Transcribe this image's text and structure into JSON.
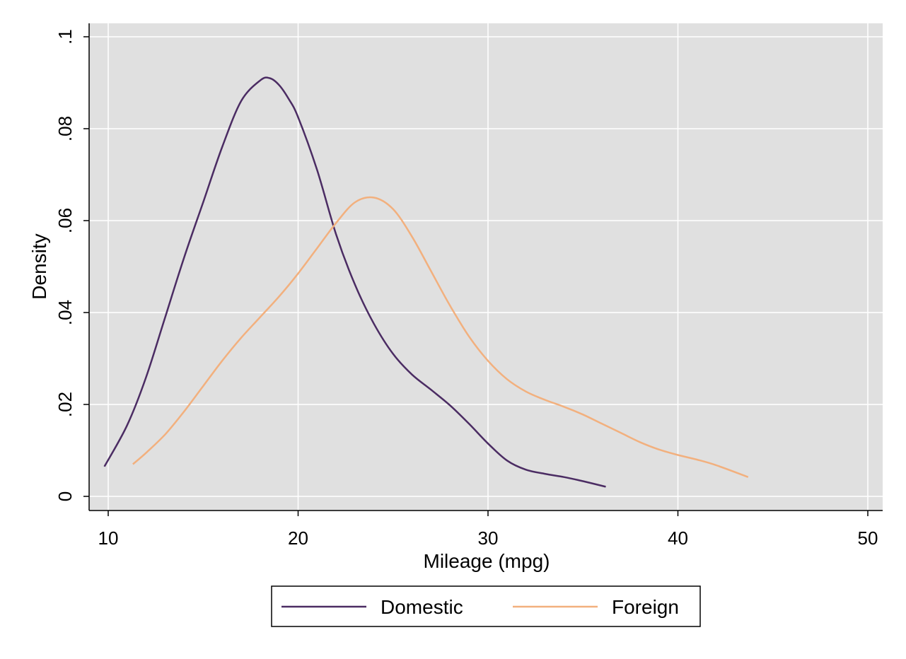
{
  "chart_data": {
    "type": "line",
    "title": "",
    "xlabel": "Mileage (mpg)",
    "ylabel": "Density",
    "xlim": [
      10,
      50
    ],
    "ylim": [
      0,
      0.1
    ],
    "xticks": [
      10,
      20,
      30,
      40,
      50
    ],
    "xtick_labels": [
      "10",
      "20",
      "30",
      "40",
      "50"
    ],
    "yticks": [
      0,
      0.02,
      0.04,
      0.06,
      0.08,
      0.1
    ],
    "ytick_labels": [
      "0",
      ".02",
      ".04",
      ".06",
      ".08",
      ".1"
    ],
    "grid": true,
    "legend_position": "bottom",
    "background_color": "#e0e0e0",
    "series": [
      {
        "name": "Domestic",
        "color": "#4b2c63",
        "x": [
          9.8,
          11,
          12,
          13,
          14,
          15,
          16,
          17,
          18,
          18.5,
          19,
          19.5,
          20,
          21,
          22,
          23,
          24,
          25,
          26,
          27,
          28,
          29,
          30,
          31,
          32,
          33,
          34,
          35,
          36.2
        ],
        "y": [
          0.0065,
          0.0155,
          0.026,
          0.039,
          0.052,
          0.064,
          0.076,
          0.086,
          0.0905,
          0.091,
          0.0895,
          0.0865,
          0.0825,
          0.071,
          0.057,
          0.046,
          0.0375,
          0.031,
          0.0265,
          0.0232,
          0.0198,
          0.0158,
          0.0115,
          0.0078,
          0.0058,
          0.0049,
          0.0042,
          0.0033,
          0.0021
        ]
      },
      {
        "name": "Foreign",
        "color": "#f2b07e",
        "x": [
          11.3,
          12,
          13,
          14,
          15,
          16,
          17,
          18,
          19,
          20,
          21,
          22,
          23,
          24,
          25,
          26,
          27,
          28,
          29,
          30,
          31,
          32,
          33,
          34,
          35,
          36,
          37,
          38,
          39,
          40,
          41,
          42,
          43.7
        ],
        "y": [
          0.007,
          0.0095,
          0.0135,
          0.0185,
          0.024,
          0.0295,
          0.0345,
          0.039,
          0.0435,
          0.0485,
          0.054,
          0.0595,
          0.064,
          0.065,
          0.0625,
          0.0565,
          0.049,
          0.0415,
          0.0348,
          0.0295,
          0.0255,
          0.0228,
          0.021,
          0.0195,
          0.0178,
          0.0158,
          0.0138,
          0.0118,
          0.0102,
          0.009,
          0.008,
          0.0068,
          0.0042
        ]
      }
    ]
  }
}
